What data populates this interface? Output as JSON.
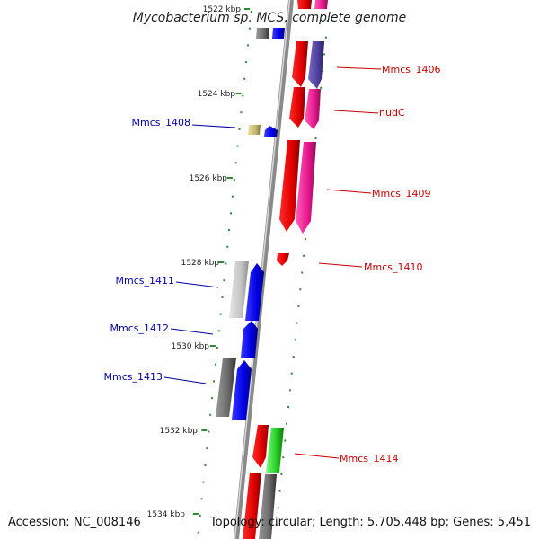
{
  "title": "Mycobacterium sp. MCS, complete genome",
  "accession": "Accession: NC_008146",
  "topology": "Topology: circular; Length: 5,705,448 bp; Genes: 5,451",
  "colors": {
    "backbone": "#8a8a8a",
    "tick": "#2e8b2e",
    "forward_label": "#cc0000",
    "reverse_label": "#0000aa"
  },
  "kbp_ticks": [
    {
      "label": "1522 kbp"
    },
    {
      "label": "1524 kbp"
    },
    {
      "label": "1526 kbp"
    },
    {
      "label": "1528 kbp"
    },
    {
      "label": "1530 kbp"
    },
    {
      "label": "1532 kbp"
    },
    {
      "label": "1534 kbp"
    }
  ],
  "gene_labels": [
    {
      "id": "mmcs-1406",
      "text": "Mmcs_1406",
      "strand": "forward"
    },
    {
      "id": "nudc",
      "text": "nudC",
      "strand": "forward"
    },
    {
      "id": "mmcs-1409",
      "text": "Mmcs_1409",
      "strand": "forward"
    },
    {
      "id": "mmcs-1410",
      "text": "Mmcs_1410",
      "strand": "forward"
    },
    {
      "id": "mmcs-1414",
      "text": "Mmcs_1414",
      "strand": "forward"
    },
    {
      "id": "mmcs-1408",
      "text": "Mmcs_1408",
      "strand": "reverse"
    },
    {
      "id": "mmcs-1411",
      "text": "Mmcs_1411",
      "strand": "reverse"
    },
    {
      "id": "mmcs-1412",
      "text": "Mmcs_1412",
      "strand": "reverse"
    },
    {
      "id": "mmcs-1413",
      "text": "Mmcs_1413",
      "strand": "reverse"
    }
  ]
}
